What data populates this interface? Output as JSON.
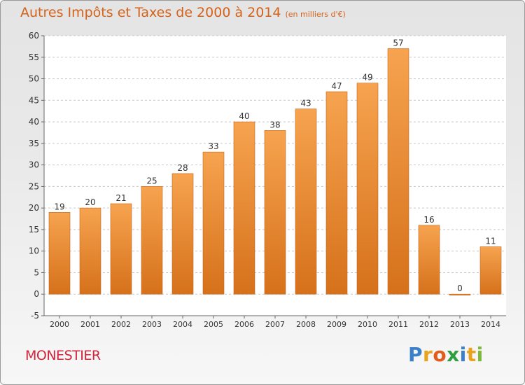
{
  "header": {
    "title": "Autres Impôts et Taxes de 2000 à 2014",
    "subtitle": "(en milliers d'€)"
  },
  "footer": {
    "commune": "MONESTIER",
    "logo_letters": [
      "P",
      "r",
      "o",
      "x",
      "i",
      "t",
      "i"
    ],
    "logo_colors": [
      "#3a7fc9",
      "#e8a31b",
      "#e25a1c",
      "#2e9e3e",
      "#3a7fc9",
      "#e8a31b",
      "#7cb83a"
    ]
  },
  "colors": {
    "bar_light": "#f6a34f",
    "bar_dark": "#d6711b",
    "title": "#d4621a",
    "commune": "#d2253c"
  },
  "chart_data": {
    "type": "bar",
    "categories": [
      "2000",
      "2001",
      "2002",
      "2003",
      "2004",
      "2005",
      "2006",
      "2007",
      "2008",
      "2009",
      "2010",
      "2011",
      "2012",
      "2013",
      "2014"
    ],
    "values": [
      19,
      20,
      21,
      25,
      28,
      33,
      40,
      38,
      43,
      47,
      49,
      57,
      16,
      0,
      11
    ],
    "value_labels": [
      "19",
      "20",
      "21",
      "25",
      "28",
      "33",
      "40",
      "38",
      "43",
      "47",
      "49",
      "57",
      "16",
      "0",
      "11"
    ],
    "ylim": [
      -5,
      60
    ],
    "yticks": [
      -5,
      0,
      5,
      10,
      15,
      20,
      25,
      30,
      35,
      40,
      45,
      50,
      55,
      60
    ],
    "ytick_labels": [
      "-5",
      "0",
      "5",
      "10",
      "15",
      "20",
      "25",
      "30",
      "35",
      "40",
      "45",
      "50",
      "55",
      "60"
    ],
    "grid": "horizontal-dashed",
    "title": "Autres Impôts et Taxes de 2000 à 2014",
    "xlabel": "",
    "ylabel": ""
  }
}
